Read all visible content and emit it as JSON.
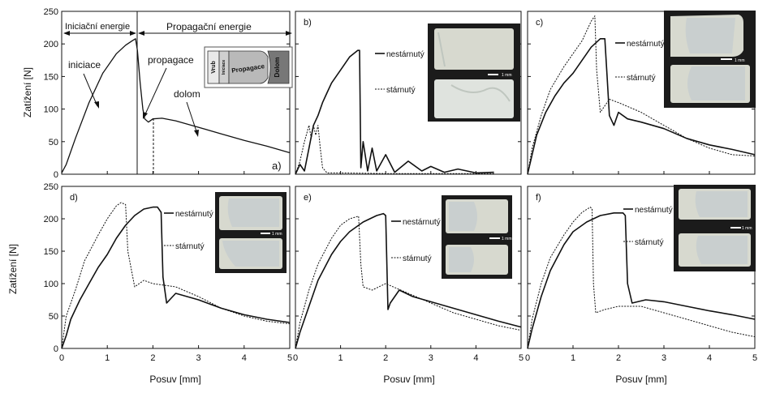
{
  "y_axis_title": "Zatížení [N]",
  "x_axis_title": "Posuv [mm]",
  "x_ticks": [
    "0",
    "1",
    "2",
    "3",
    "4",
    "5"
  ],
  "y_ticks_top": [
    "0",
    "50",
    "100",
    "150",
    "200",
    "250"
  ],
  "y_ticks_bottom": [
    "0",
    "50",
    "100",
    "150",
    "200",
    "250"
  ],
  "scale_bar_label": "1 mm",
  "panels": [
    {
      "id": "a",
      "label": "a)",
      "row": 0,
      "col": 0
    },
    {
      "id": "b",
      "label": "b)",
      "row": 0,
      "col": 1
    },
    {
      "id": "c",
      "label": "c)",
      "row": 0,
      "col": 2
    },
    {
      "id": "d",
      "label": "d)",
      "row": 1,
      "col": 0
    },
    {
      "id": "e",
      "label": "e)",
      "row": 1,
      "col": 1
    },
    {
      "id": "f",
      "label": "f)",
      "row": 1,
      "col": 2
    }
  ],
  "panel_a_annotations": {
    "initiation_energy": "Iniciační energie",
    "propagation_energy": "Propagační energie",
    "initiation": "iniciace",
    "propagation": "propagace",
    "fracture": "dolom",
    "inset_notch": "Vrub",
    "inset_initiation": "Iniciace",
    "inset_propagation": "Propagace",
    "inset_fracture": "Dolom"
  },
  "legend": {
    "unaged": "nestárnutý",
    "aged": "stárnutý"
  },
  "colors": {
    "curve": "#111111",
    "photo_background": "#1b1b1b",
    "inset_fracture": "#777777"
  },
  "chart_data": [
    {
      "type": "line",
      "panel": "a)",
      "xlabel": "",
      "ylabel": "Zatížení [N]",
      "xlim": [
        0,
        5
      ],
      "ylim": [
        0,
        250
      ],
      "series": [
        {
          "values": [
            [
              0.0,
              2
            ],
            [
              0.1,
              15
            ],
            [
              0.3,
              55
            ],
            [
              0.6,
              110
            ],
            [
              0.9,
              155
            ],
            [
              1.2,
              185
            ],
            [
              1.4,
              198
            ],
            [
              1.55,
              205
            ],
            [
              1.62,
              208
            ],
            [
              1.66,
              190
            ],
            [
              1.72,
              140
            ],
            [
              1.78,
              100
            ],
            [
              1.82,
              85
            ],
            [
              1.9,
              80
            ],
            [
              2.0,
              85
            ],
            [
              2.2,
              86
            ],
            [
              2.5,
              82
            ],
            [
              3.0,
              72
            ],
            [
              3.5,
              62
            ],
            [
              4.0,
              52
            ],
            [
              4.5,
              43
            ],
            [
              5.0,
              33
            ]
          ]
        }
      ]
    },
    {
      "type": "line",
      "panel": "b)",
      "xlabel": "",
      "ylabel": "",
      "xlim": [
        0,
        5
      ],
      "ylim": [
        0,
        250
      ],
      "series": [
        {
          "name": "nestárnutý",
          "values": [
            [
              0.0,
              0
            ],
            [
              0.1,
              15
            ],
            [
              0.2,
              5
            ],
            [
              0.3,
              40
            ],
            [
              0.4,
              75
            ],
            [
              0.5,
              90
            ],
            [
              0.6,
              110
            ],
            [
              0.7,
              125
            ],
            [
              0.8,
              140
            ],
            [
              1.0,
              160
            ],
            [
              1.2,
              180
            ],
            [
              1.38,
              190
            ],
            [
              1.42,
              190
            ],
            [
              1.45,
              10
            ],
            [
              1.5,
              50
            ],
            [
              1.6,
              5
            ],
            [
              1.7,
              40
            ],
            [
              1.8,
              5
            ],
            [
              2.0,
              30
            ],
            [
              2.2,
              3
            ],
            [
              2.5,
              20
            ],
            [
              2.8,
              5
            ],
            [
              3.0,
              12
            ],
            [
              3.3,
              3
            ],
            [
              3.6,
              8
            ],
            [
              4.0,
              2
            ],
            [
              4.4,
              3
            ]
          ]
        },
        {
          "name": "stárnutý",
          "values": [
            [
              0.0,
              0
            ],
            [
              0.1,
              20
            ],
            [
              0.2,
              50
            ],
            [
              0.3,
              75
            ],
            [
              0.35,
              55
            ],
            [
              0.4,
              75
            ],
            [
              0.45,
              60
            ],
            [
              0.5,
              75
            ],
            [
              0.55,
              40
            ],
            [
              0.6,
              10
            ],
            [
              0.7,
              2
            ],
            [
              1.0,
              2
            ],
            [
              2.0,
              1
            ],
            [
              3.0,
              1
            ],
            [
              4.0,
              1
            ],
            [
              4.4,
              1
            ]
          ]
        }
      ]
    },
    {
      "type": "line",
      "panel": "c)",
      "xlabel": "",
      "ylabel": "",
      "xlim": [
        0,
        5
      ],
      "ylim": [
        0,
        250
      ],
      "series": [
        {
          "name": "nestárnutý",
          "values": [
            [
              0.0,
              0
            ],
            [
              0.1,
              30
            ],
            [
              0.2,
              60
            ],
            [
              0.4,
              95
            ],
            [
              0.6,
              120
            ],
            [
              0.8,
              140
            ],
            [
              1.0,
              155
            ],
            [
              1.2,
              175
            ],
            [
              1.4,
              195
            ],
            [
              1.6,
              208
            ],
            [
              1.7,
              208
            ],
            [
              1.75,
              150
            ],
            [
              1.8,
              90
            ],
            [
              1.9,
              75
            ],
            [
              2.0,
              95
            ],
            [
              2.2,
              85
            ],
            [
              2.5,
              80
            ],
            [
              3.0,
              70
            ],
            [
              3.5,
              55
            ],
            [
              4.0,
              45
            ],
            [
              4.5,
              38
            ],
            [
              5.0,
              30
            ]
          ]
        },
        {
          "name": "stárnutý",
          "values": [
            [
              0.0,
              0
            ],
            [
              0.1,
              40
            ],
            [
              0.3,
              90
            ],
            [
              0.5,
              130
            ],
            [
              0.8,
              165
            ],
            [
              1.0,
              185
            ],
            [
              1.2,
              205
            ],
            [
              1.4,
              235
            ],
            [
              1.48,
              243
            ],
            [
              1.52,
              160
            ],
            [
              1.6,
              95
            ],
            [
              1.8,
              115
            ],
            [
              2.0,
              110
            ],
            [
              2.5,
              95
            ],
            [
              3.0,
              75
            ],
            [
              3.5,
              55
            ],
            [
              4.0,
              40
            ],
            [
              4.5,
              30
            ],
            [
              5.0,
              28
            ]
          ]
        }
      ]
    },
    {
      "type": "line",
      "panel": "d)",
      "xlabel": "Posuv [mm]",
      "ylabel": "Zatížení [N]",
      "xlim": [
        0,
        5
      ],
      "ylim": [
        0,
        250
      ],
      "series": [
        {
          "name": "nestárnutý",
          "values": [
            [
              0.0,
              0
            ],
            [
              0.1,
              20
            ],
            [
              0.2,
              45
            ],
            [
              0.4,
              75
            ],
            [
              0.6,
              100
            ],
            [
              0.8,
              125
            ],
            [
              1.0,
              145
            ],
            [
              1.2,
              170
            ],
            [
              1.4,
              190
            ],
            [
              1.6,
              205
            ],
            [
              1.8,
              215
            ],
            [
              2.0,
              218
            ],
            [
              2.1,
              218
            ],
            [
              2.18,
              210
            ],
            [
              2.22,
              110
            ],
            [
              2.3,
              70
            ],
            [
              2.5,
              85
            ],
            [
              3.0,
              75
            ],
            [
              3.5,
              62
            ],
            [
              4.0,
              52
            ],
            [
              4.5,
              45
            ],
            [
              5.0,
              40
            ]
          ]
        },
        {
          "name": "stárnutý",
          "values": [
            [
              0.0,
              0
            ],
            [
              0.1,
              50
            ],
            [
              0.3,
              90
            ],
            [
              0.5,
              135
            ],
            [
              0.8,
              175
            ],
            [
              1.0,
              200
            ],
            [
              1.2,
              220
            ],
            [
              1.3,
              225
            ],
            [
              1.4,
              222
            ],
            [
              1.45,
              150
            ],
            [
              1.6,
              95
            ],
            [
              1.8,
              105
            ],
            [
              2.0,
              100
            ],
            [
              2.5,
              95
            ],
            [
              3.0,
              80
            ],
            [
              3.5,
              62
            ],
            [
              4.0,
              50
            ],
            [
              4.5,
              42
            ],
            [
              5.0,
              38
            ]
          ]
        }
      ]
    },
    {
      "type": "line",
      "panel": "e)",
      "xlabel": "Posuv [mm]",
      "ylabel": "",
      "xlim": [
        0,
        5
      ],
      "ylim": [
        0,
        250
      ],
      "series": [
        {
          "name": "nestárnutý",
          "values": [
            [
              0.0,
              0
            ],
            [
              0.1,
              25
            ],
            [
              0.3,
              65
            ],
            [
              0.5,
              105
            ],
            [
              0.8,
              145
            ],
            [
              1.0,
              165
            ],
            [
              1.2,
              180
            ],
            [
              1.5,
              195
            ],
            [
              1.8,
              205
            ],
            [
              1.95,
              208
            ],
            [
              2.0,
              205
            ],
            [
              2.05,
              60
            ],
            [
              2.1,
              70
            ],
            [
              2.3,
              90
            ],
            [
              2.6,
              80
            ],
            [
              3.0,
              72
            ],
            [
              3.5,
              62
            ],
            [
              4.0,
              52
            ],
            [
              4.5,
              42
            ],
            [
              5.0,
              33
            ]
          ]
        },
        {
          "name": "stárnutý",
          "values": [
            [
              0.0,
              0
            ],
            [
              0.1,
              40
            ],
            [
              0.3,
              90
            ],
            [
              0.5,
              130
            ],
            [
              0.8,
              170
            ],
            [
              1.0,
              190
            ],
            [
              1.2,
              200
            ],
            [
              1.4,
              204
            ],
            [
              1.45,
              130
            ],
            [
              1.5,
              95
            ],
            [
              1.7,
              90
            ],
            [
              2.0,
              100
            ],
            [
              2.5,
              85
            ],
            [
              3.0,
              70
            ],
            [
              3.5,
              55
            ],
            [
              4.0,
              45
            ],
            [
              4.5,
              35
            ],
            [
              5.0,
              28
            ]
          ]
        }
      ]
    },
    {
      "type": "line",
      "panel": "f)",
      "xlabel": "Posuv [mm]",
      "ylabel": "",
      "xlim": [
        0,
        5
      ],
      "ylim": [
        0,
        250
      ],
      "series": [
        {
          "name": "nestárnutý",
          "values": [
            [
              0.0,
              0
            ],
            [
              0.1,
              30
            ],
            [
              0.3,
              80
            ],
            [
              0.5,
              120
            ],
            [
              0.8,
              160
            ],
            [
              1.0,
              180
            ],
            [
              1.3,
              195
            ],
            [
              1.6,
              205
            ],
            [
              1.9,
              209
            ],
            [
              2.1,
              209
            ],
            [
              2.15,
              205
            ],
            [
              2.2,
              100
            ],
            [
              2.3,
              70
            ],
            [
              2.6,
              75
            ],
            [
              3.0,
              72
            ],
            [
              3.5,
              65
            ],
            [
              4.0,
              58
            ],
            [
              4.5,
              52
            ],
            [
              5.0,
              45
            ]
          ]
        },
        {
          "name": "stárnutý",
          "values": [
            [
              0.0,
              0
            ],
            [
              0.1,
              45
            ],
            [
              0.3,
              100
            ],
            [
              0.5,
              140
            ],
            [
              0.8,
              175
            ],
            [
              1.0,
              195
            ],
            [
              1.2,
              210
            ],
            [
              1.38,
              218
            ],
            [
              1.42,
              215
            ],
            [
              1.45,
              100
            ],
            [
              1.5,
              55
            ],
            [
              1.7,
              60
            ],
            [
              2.0,
              65
            ],
            [
              2.5,
              65
            ],
            [
              3.0,
              55
            ],
            [
              3.5,
              45
            ],
            [
              4.0,
              35
            ],
            [
              4.5,
              25
            ],
            [
              5.0,
              18
            ]
          ]
        }
      ]
    }
  ]
}
